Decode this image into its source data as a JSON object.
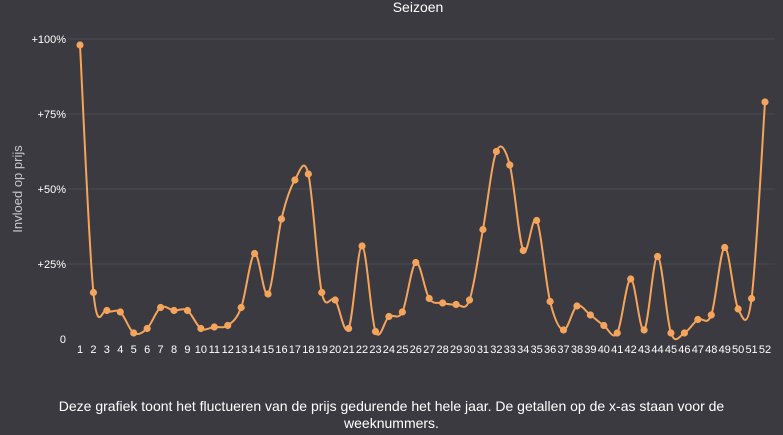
{
  "chart_data": {
    "type": "line",
    "title": "Seizoen",
    "ylabel": "Invloed op prijs",
    "xlabel": "",
    "ylim": [
      0,
      100
    ],
    "yticks": [
      {
        "value": 0,
        "label": "0"
      },
      {
        "value": 25,
        "label": "+25%"
      },
      {
        "value": 50,
        "label": "+50%"
      },
      {
        "value": 75,
        "label": "+75%"
      },
      {
        "value": 100,
        "label": "+100%"
      }
    ],
    "categories": [
      "1",
      "2",
      "3",
      "4",
      "5",
      "6",
      "7",
      "8",
      "9",
      "10",
      "11",
      "12",
      "13",
      "14",
      "15",
      "16",
      "17",
      "18",
      "19",
      "20",
      "21",
      "22",
      "23",
      "24",
      "25",
      "26",
      "27",
      "28",
      "29",
      "30",
      "31",
      "32",
      "33",
      "34",
      "35",
      "36",
      "37",
      "38",
      "39",
      "40",
      "41",
      "42",
      "43",
      "44",
      "45",
      "46",
      "47",
      "48",
      "49",
      "50",
      "51",
      "52"
    ],
    "values": [
      98,
      15.5,
      9.5,
      9,
      2,
      3.5,
      10.5,
      9.5,
      9.5,
      3.5,
      4,
      4.5,
      10.5,
      28.5,
      15,
      40,
      53,
      55,
      15.5,
      13,
      3.5,
      31,
      2.5,
      7.5,
      9,
      25.5,
      13.5,
      12,
      11.5,
      13,
      36.5,
      62.5,
      58,
      29.5,
      39.5,
      12.5,
      3,
      11,
      8,
      4.5,
      2,
      20,
      3,
      27.5,
      2,
      2,
      6.5,
      8,
      30.5,
      10,
      13.5,
      79
    ],
    "grid": true,
    "line_color": "#f5a45c",
    "grid_color": "#4a4a52",
    "axis_text_color": "#ffffff"
  },
  "caption": "Deze grafiek toont het fluctueren van de prijs gedurende het hele jaar. De getallen op de x-as staan voor de weeknummers."
}
